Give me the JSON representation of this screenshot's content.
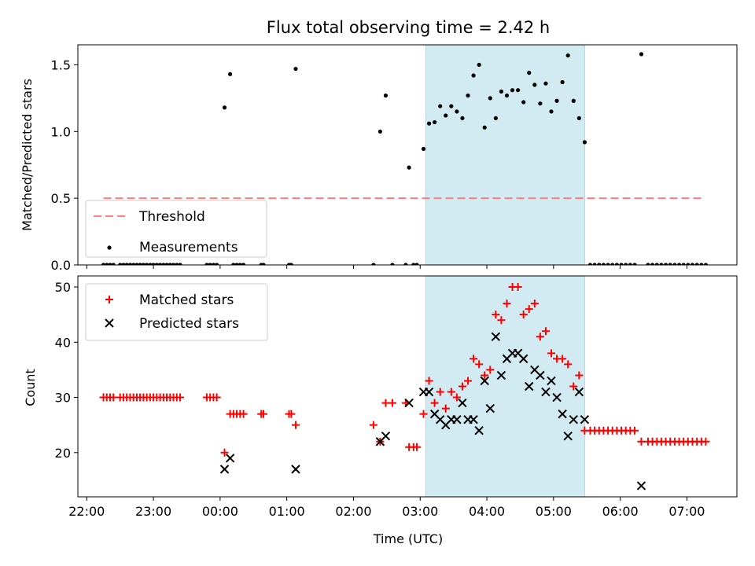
{
  "chart_data": [
    {
      "type": "scatter",
      "title": "Flux total observing time = 2.42 h",
      "xlabel": "",
      "ylabel": "Matched/Predicted stars",
      "xlim": [
        "21:52",
        "07:45"
      ],
      "ylim": [
        0,
        1.65
      ],
      "yticks": [
        0.0,
        0.5,
        1.0,
        1.5
      ],
      "ytick_labels": [
        "0.0",
        "0.5",
        "1.0",
        "1.5"
      ],
      "grid": false,
      "legend_position": "lower left",
      "highlight_span": {
        "start": "03:05",
        "end": "05:28",
        "color": "#add8e6"
      },
      "threshold": {
        "name": "Threshold",
        "value": 0.5,
        "x_start": "22:15",
        "x_end": "07:15",
        "color": "#ff7f7f",
        "style": "dashed"
      },
      "series": [
        {
          "name": "Measurements",
          "color": "#000000",
          "marker": "dot",
          "points": [
            [
              "22:15",
              0.0
            ],
            [
              "22:18",
              0.0
            ],
            [
              "22:21",
              0.0
            ],
            [
              "22:24",
              0.0
            ],
            [
              "22:30",
              0.0
            ],
            [
              "22:33",
              0.0
            ],
            [
              "22:36",
              0.0
            ],
            [
              "22:39",
              0.0
            ],
            [
              "22:42",
              0.0
            ],
            [
              "22:45",
              0.0
            ],
            [
              "22:48",
              0.0
            ],
            [
              "22:51",
              0.0
            ],
            [
              "22:54",
              0.0
            ],
            [
              "22:57",
              0.0
            ],
            [
              "23:00",
              0.0
            ],
            [
              "23:03",
              0.0
            ],
            [
              "23:06",
              0.0
            ],
            [
              "23:09",
              0.0
            ],
            [
              "23:12",
              0.0
            ],
            [
              "23:15",
              0.0
            ],
            [
              "23:18",
              0.0
            ],
            [
              "23:21",
              0.0
            ],
            [
              "23:24",
              0.0
            ],
            [
              "23:48",
              0.0
            ],
            [
              "23:51",
              0.0
            ],
            [
              "23:54",
              0.0
            ],
            [
              "23:57",
              0.0
            ],
            [
              "00:04",
              1.18
            ],
            [
              "00:09",
              1.43
            ],
            [
              "00:12",
              0.0
            ],
            [
              "00:15",
              0.0
            ],
            [
              "00:18",
              0.0
            ],
            [
              "00:21",
              0.0
            ],
            [
              "00:37",
              0.0
            ],
            [
              "00:39",
              0.0
            ],
            [
              "01:02",
              0.0
            ],
            [
              "01:04",
              0.0
            ],
            [
              "01:08",
              1.47
            ],
            [
              "02:18",
              0.0
            ],
            [
              "02:24",
              1.0
            ],
            [
              "02:29",
              1.27
            ],
            [
              "02:35",
              0.0
            ],
            [
              "02:47",
              0.0
            ],
            [
              "02:50",
              0.73
            ],
            [
              "02:54",
              0.0
            ],
            [
              "02:57",
              0.0
            ],
            [
              "03:03",
              0.87
            ],
            [
              "03:08",
              1.06
            ],
            [
              "03:13",
              1.07
            ],
            [
              "03:18",
              1.19
            ],
            [
              "03:23",
              1.12
            ],
            [
              "03:28",
              1.19
            ],
            [
              "03:33",
              1.15
            ],
            [
              "03:38",
              1.1
            ],
            [
              "03:43",
              1.27
            ],
            [
              "03:48",
              1.42
            ],
            [
              "03:53",
              1.5
            ],
            [
              "03:58",
              1.03
            ],
            [
              "04:03",
              1.25
            ],
            [
              "04:08",
              1.1
            ],
            [
              "04:13",
              1.3
            ],
            [
              "04:18",
              1.27
            ],
            [
              "04:23",
              1.31
            ],
            [
              "04:28",
              1.31
            ],
            [
              "04:33",
              1.22
            ],
            [
              "04:38",
              1.44
            ],
            [
              "04:43",
              1.35
            ],
            [
              "04:48",
              1.21
            ],
            [
              "04:53",
              1.36
            ],
            [
              "04:58",
              1.15
            ],
            [
              "05:03",
              1.23
            ],
            [
              "05:08",
              1.37
            ],
            [
              "05:13",
              1.57
            ],
            [
              "05:18",
              1.23
            ],
            [
              "05:23",
              1.1
            ],
            [
              "05:28",
              0.92
            ],
            [
              "05:33",
              0.0
            ],
            [
              "05:37",
              0.0
            ],
            [
              "05:41",
              0.0
            ],
            [
              "05:45",
              0.0
            ],
            [
              "05:49",
              0.0
            ],
            [
              "05:53",
              0.0
            ],
            [
              "05:57",
              0.0
            ],
            [
              "06:01",
              0.0
            ],
            [
              "06:05",
              0.0
            ],
            [
              "06:09",
              0.0
            ],
            [
              "06:13",
              0.0
            ],
            [
              "06:19",
              1.58
            ],
            [
              "06:25",
              0.0
            ],
            [
              "06:29",
              0.0
            ],
            [
              "06:33",
              0.0
            ],
            [
              "06:37",
              0.0
            ],
            [
              "06:41",
              0.0
            ],
            [
              "06:45",
              0.0
            ],
            [
              "06:49",
              0.0
            ],
            [
              "06:53",
              0.0
            ],
            [
              "06:57",
              0.0
            ],
            [
              "07:01",
              0.0
            ],
            [
              "07:05",
              0.0
            ],
            [
              "07:09",
              0.0
            ],
            [
              "07:13",
              0.0
            ],
            [
              "07:17",
              0.0
            ]
          ]
        }
      ]
    },
    {
      "type": "scatter",
      "title": "",
      "xlabel": "Time (UTC)",
      "ylabel": "Count",
      "xlim": [
        "21:52",
        "07:45"
      ],
      "ylim": [
        12,
        52
      ],
      "xticks": [
        "22:00",
        "23:00",
        "00:00",
        "01:00",
        "02:00",
        "03:00",
        "04:00",
        "05:00",
        "06:00",
        "07:00"
      ],
      "yticks": [
        20,
        30,
        40,
        50
      ],
      "ytick_labels": [
        "20",
        "30",
        "40",
        "50"
      ],
      "grid": false,
      "legend_position": "upper left",
      "highlight_span": {
        "start": "03:05",
        "end": "05:28",
        "color": "#add8e6"
      },
      "series": [
        {
          "name": "Matched stars",
          "color": "#ff0000",
          "marker": "plus",
          "points": [
            [
              "22:15",
              30
            ],
            [
              "22:18",
              30
            ],
            [
              "22:21",
              30
            ],
            [
              "22:24",
              30
            ],
            [
              "22:30",
              30
            ],
            [
              "22:33",
              30
            ],
            [
              "22:36",
              30
            ],
            [
              "22:39",
              30
            ],
            [
              "22:42",
              30
            ],
            [
              "22:45",
              30
            ],
            [
              "22:48",
              30
            ],
            [
              "22:51",
              30
            ],
            [
              "22:54",
              30
            ],
            [
              "22:57",
              30
            ],
            [
              "23:00",
              30
            ],
            [
              "23:03",
              30
            ],
            [
              "23:06",
              30
            ],
            [
              "23:09",
              30
            ],
            [
              "23:12",
              30
            ],
            [
              "23:15",
              30
            ],
            [
              "23:18",
              30
            ],
            [
              "23:21",
              30
            ],
            [
              "23:24",
              30
            ],
            [
              "23:48",
              30
            ],
            [
              "23:51",
              30
            ],
            [
              "23:54",
              30
            ],
            [
              "23:57",
              30
            ],
            [
              "00:04",
              20
            ],
            [
              "00:09",
              27
            ],
            [
              "00:12",
              27
            ],
            [
              "00:15",
              27
            ],
            [
              "00:18",
              27
            ],
            [
              "00:21",
              27
            ],
            [
              "00:37",
              27
            ],
            [
              "00:39",
              27
            ],
            [
              "01:02",
              27
            ],
            [
              "01:04",
              27
            ],
            [
              "01:08",
              25
            ],
            [
              "02:18",
              25
            ],
            [
              "02:24",
              22
            ],
            [
              "02:29",
              29
            ],
            [
              "02:35",
              29
            ],
            [
              "02:47",
              29
            ],
            [
              "02:50",
              21
            ],
            [
              "02:54",
              21
            ],
            [
              "02:57",
              21
            ],
            [
              "03:03",
              27
            ],
            [
              "03:08",
              33
            ],
            [
              "03:13",
              29
            ],
            [
              "03:18",
              31
            ],
            [
              "03:23",
              28
            ],
            [
              "03:28",
              31
            ],
            [
              "03:33",
              30
            ],
            [
              "03:38",
              32
            ],
            [
              "03:43",
              33
            ],
            [
              "03:48",
              37
            ],
            [
              "03:53",
              36
            ],
            [
              "03:58",
              34
            ],
            [
              "04:03",
              35
            ],
            [
              "04:08",
              45
            ],
            [
              "04:13",
              44
            ],
            [
              "04:18",
              47
            ],
            [
              "04:23",
              50
            ],
            [
              "04:28",
              50
            ],
            [
              "04:33",
              45
            ],
            [
              "04:38",
              46
            ],
            [
              "04:43",
              47
            ],
            [
              "04:48",
              41
            ],
            [
              "04:53",
              42
            ],
            [
              "04:58",
              38
            ],
            [
              "05:03",
              37
            ],
            [
              "05:08",
              37
            ],
            [
              "05:13",
              36
            ],
            [
              "05:18",
              32
            ],
            [
              "05:23",
              34
            ],
            [
              "05:28",
              24
            ],
            [
              "05:33",
              24
            ],
            [
              "05:37",
              24
            ],
            [
              "05:41",
              24
            ],
            [
              "05:45",
              24
            ],
            [
              "05:49",
              24
            ],
            [
              "05:53",
              24
            ],
            [
              "05:57",
              24
            ],
            [
              "06:01",
              24
            ],
            [
              "06:05",
              24
            ],
            [
              "06:09",
              24
            ],
            [
              "06:13",
              24
            ],
            [
              "06:19",
              22
            ],
            [
              "06:25",
              22
            ],
            [
              "06:29",
              22
            ],
            [
              "06:33",
              22
            ],
            [
              "06:37",
              22
            ],
            [
              "06:41",
              22
            ],
            [
              "06:45",
              22
            ],
            [
              "06:49",
              22
            ],
            [
              "06:53",
              22
            ],
            [
              "06:57",
              22
            ],
            [
              "07:01",
              22
            ],
            [
              "07:05",
              22
            ],
            [
              "07:09",
              22
            ],
            [
              "07:13",
              22
            ],
            [
              "07:17",
              22
            ]
          ]
        },
        {
          "name": "Predicted stars",
          "color": "#000000",
          "marker": "x",
          "points": [
            [
              "00:04",
              17
            ],
            [
              "00:09",
              19
            ],
            [
              "01:08",
              17
            ],
            [
              "02:24",
              22
            ],
            [
              "02:29",
              23
            ],
            [
              "02:50",
              29
            ],
            [
              "03:03",
              31
            ],
            [
              "03:08",
              31
            ],
            [
              "03:13",
              27
            ],
            [
              "03:18",
              26
            ],
            [
              "03:23",
              25
            ],
            [
              "03:28",
              26
            ],
            [
              "03:33",
              26
            ],
            [
              "03:38",
              29
            ],
            [
              "03:43",
              26
            ],
            [
              "03:48",
              26
            ],
            [
              "03:53",
              24
            ],
            [
              "03:58",
              33
            ],
            [
              "04:03",
              28
            ],
            [
              "04:08",
              41
            ],
            [
              "04:13",
              34
            ],
            [
              "04:18",
              37
            ],
            [
              "04:23",
              38
            ],
            [
              "04:28",
              38
            ],
            [
              "04:33",
              37
            ],
            [
              "04:38",
              32
            ],
            [
              "04:43",
              35
            ],
            [
              "04:48",
              34
            ],
            [
              "04:53",
              31
            ],
            [
              "04:58",
              33
            ],
            [
              "05:03",
              30
            ],
            [
              "05:08",
              27
            ],
            [
              "05:13",
              23
            ],
            [
              "05:18",
              26
            ],
            [
              "05:23",
              31
            ],
            [
              "05:28",
              26
            ],
            [
              "06:19",
              14
            ]
          ]
        }
      ]
    }
  ]
}
